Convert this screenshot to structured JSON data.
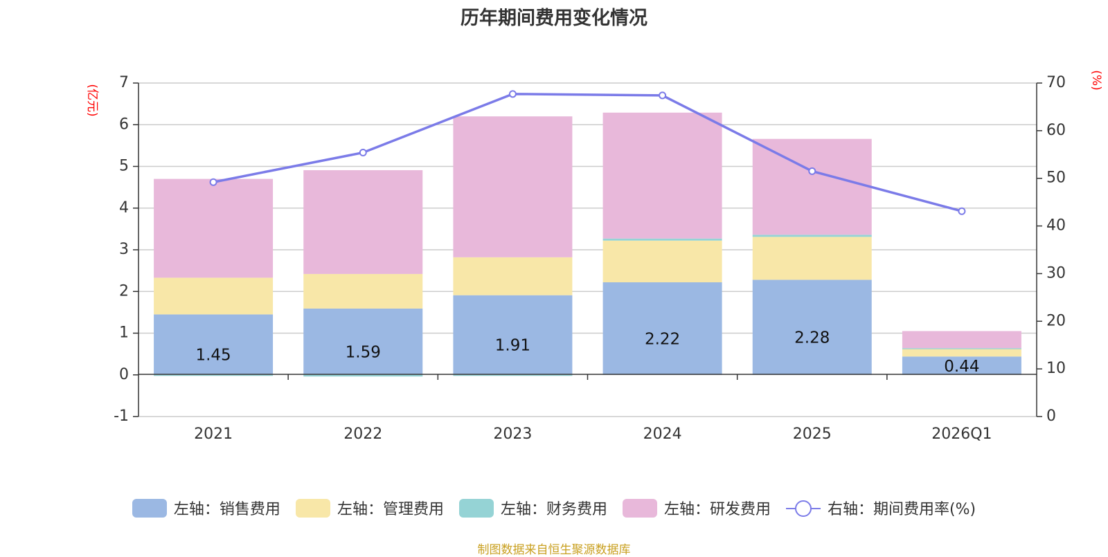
{
  "chart_data": {
    "type": "bar",
    "title": "历年期间费用变化情况",
    "categories": [
      "2021",
      "2022",
      "2023",
      "2024",
      "2025",
      "2026Q1"
    ],
    "left_axis": {
      "unit": "(亿元)",
      "ylim": [
        -1,
        7
      ],
      "ticks": [
        -1,
        0,
        1,
        2,
        3,
        4,
        5,
        6,
        7
      ]
    },
    "right_axis": {
      "unit": "(%)",
      "ylim": [
        0,
        70
      ],
      "ticks": [
        0,
        10,
        20,
        30,
        40,
        50,
        60,
        70
      ]
    },
    "series": [
      {
        "name": "左轴：销售费用",
        "color": "#9bb8e3",
        "values": [
          1.45,
          1.59,
          1.91,
          2.22,
          2.28,
          0.44
        ],
        "labels": [
          "1.45",
          "1.59",
          "1.91",
          "2.22",
          "2.28",
          "0.44"
        ]
      },
      {
        "name": "左轴：管理费用",
        "color": "#f8e7a8",
        "values": [
          0.88,
          0.83,
          0.91,
          1.0,
          1.03,
          0.19
        ]
      },
      {
        "name": "左轴：财务费用",
        "color": "#95d3d5",
        "values": [
          -0.02,
          -0.04,
          -0.01,
          0.05,
          0.05,
          0.01
        ]
      },
      {
        "name": "左轴：研发费用",
        "color": "#e8b8da",
        "values": [
          2.37,
          2.49,
          3.38,
          3.02,
          2.3,
          0.41
        ]
      }
    ],
    "line_series": {
      "name": "右轴：期间费用率(%)",
      "color": "#7b7be8",
      "values": [
        49.2,
        55.4,
        67.7,
        67.4,
        51.5,
        43.1
      ]
    },
    "grid": true,
    "legend_position": "bottom"
  },
  "source": "制图数据来自恒生聚源数据库"
}
